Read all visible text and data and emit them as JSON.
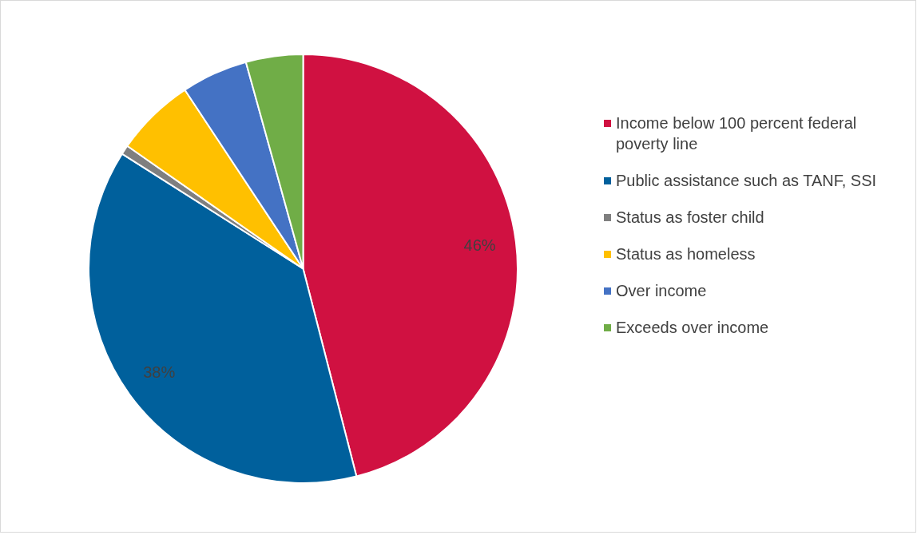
{
  "chart_data": {
    "type": "pie",
    "categories": [
      "Income below 100 percent federal poverty line",
      "Public assistance such as TANF, SSI",
      "Status as foster child",
      "Status as homeless",
      "Over income",
      "Exceeds over income"
    ],
    "values": [
      46,
      38,
      0.7,
      6,
      5,
      4.3
    ],
    "colors": [
      "#d01141",
      "#00609c",
      "#7f7f7f",
      "#ffc000",
      "#4472c4",
      "#70ad47"
    ],
    "value_labels": [
      "46%",
      "38%",
      null,
      null,
      null,
      null
    ],
    "legend": "right"
  }
}
